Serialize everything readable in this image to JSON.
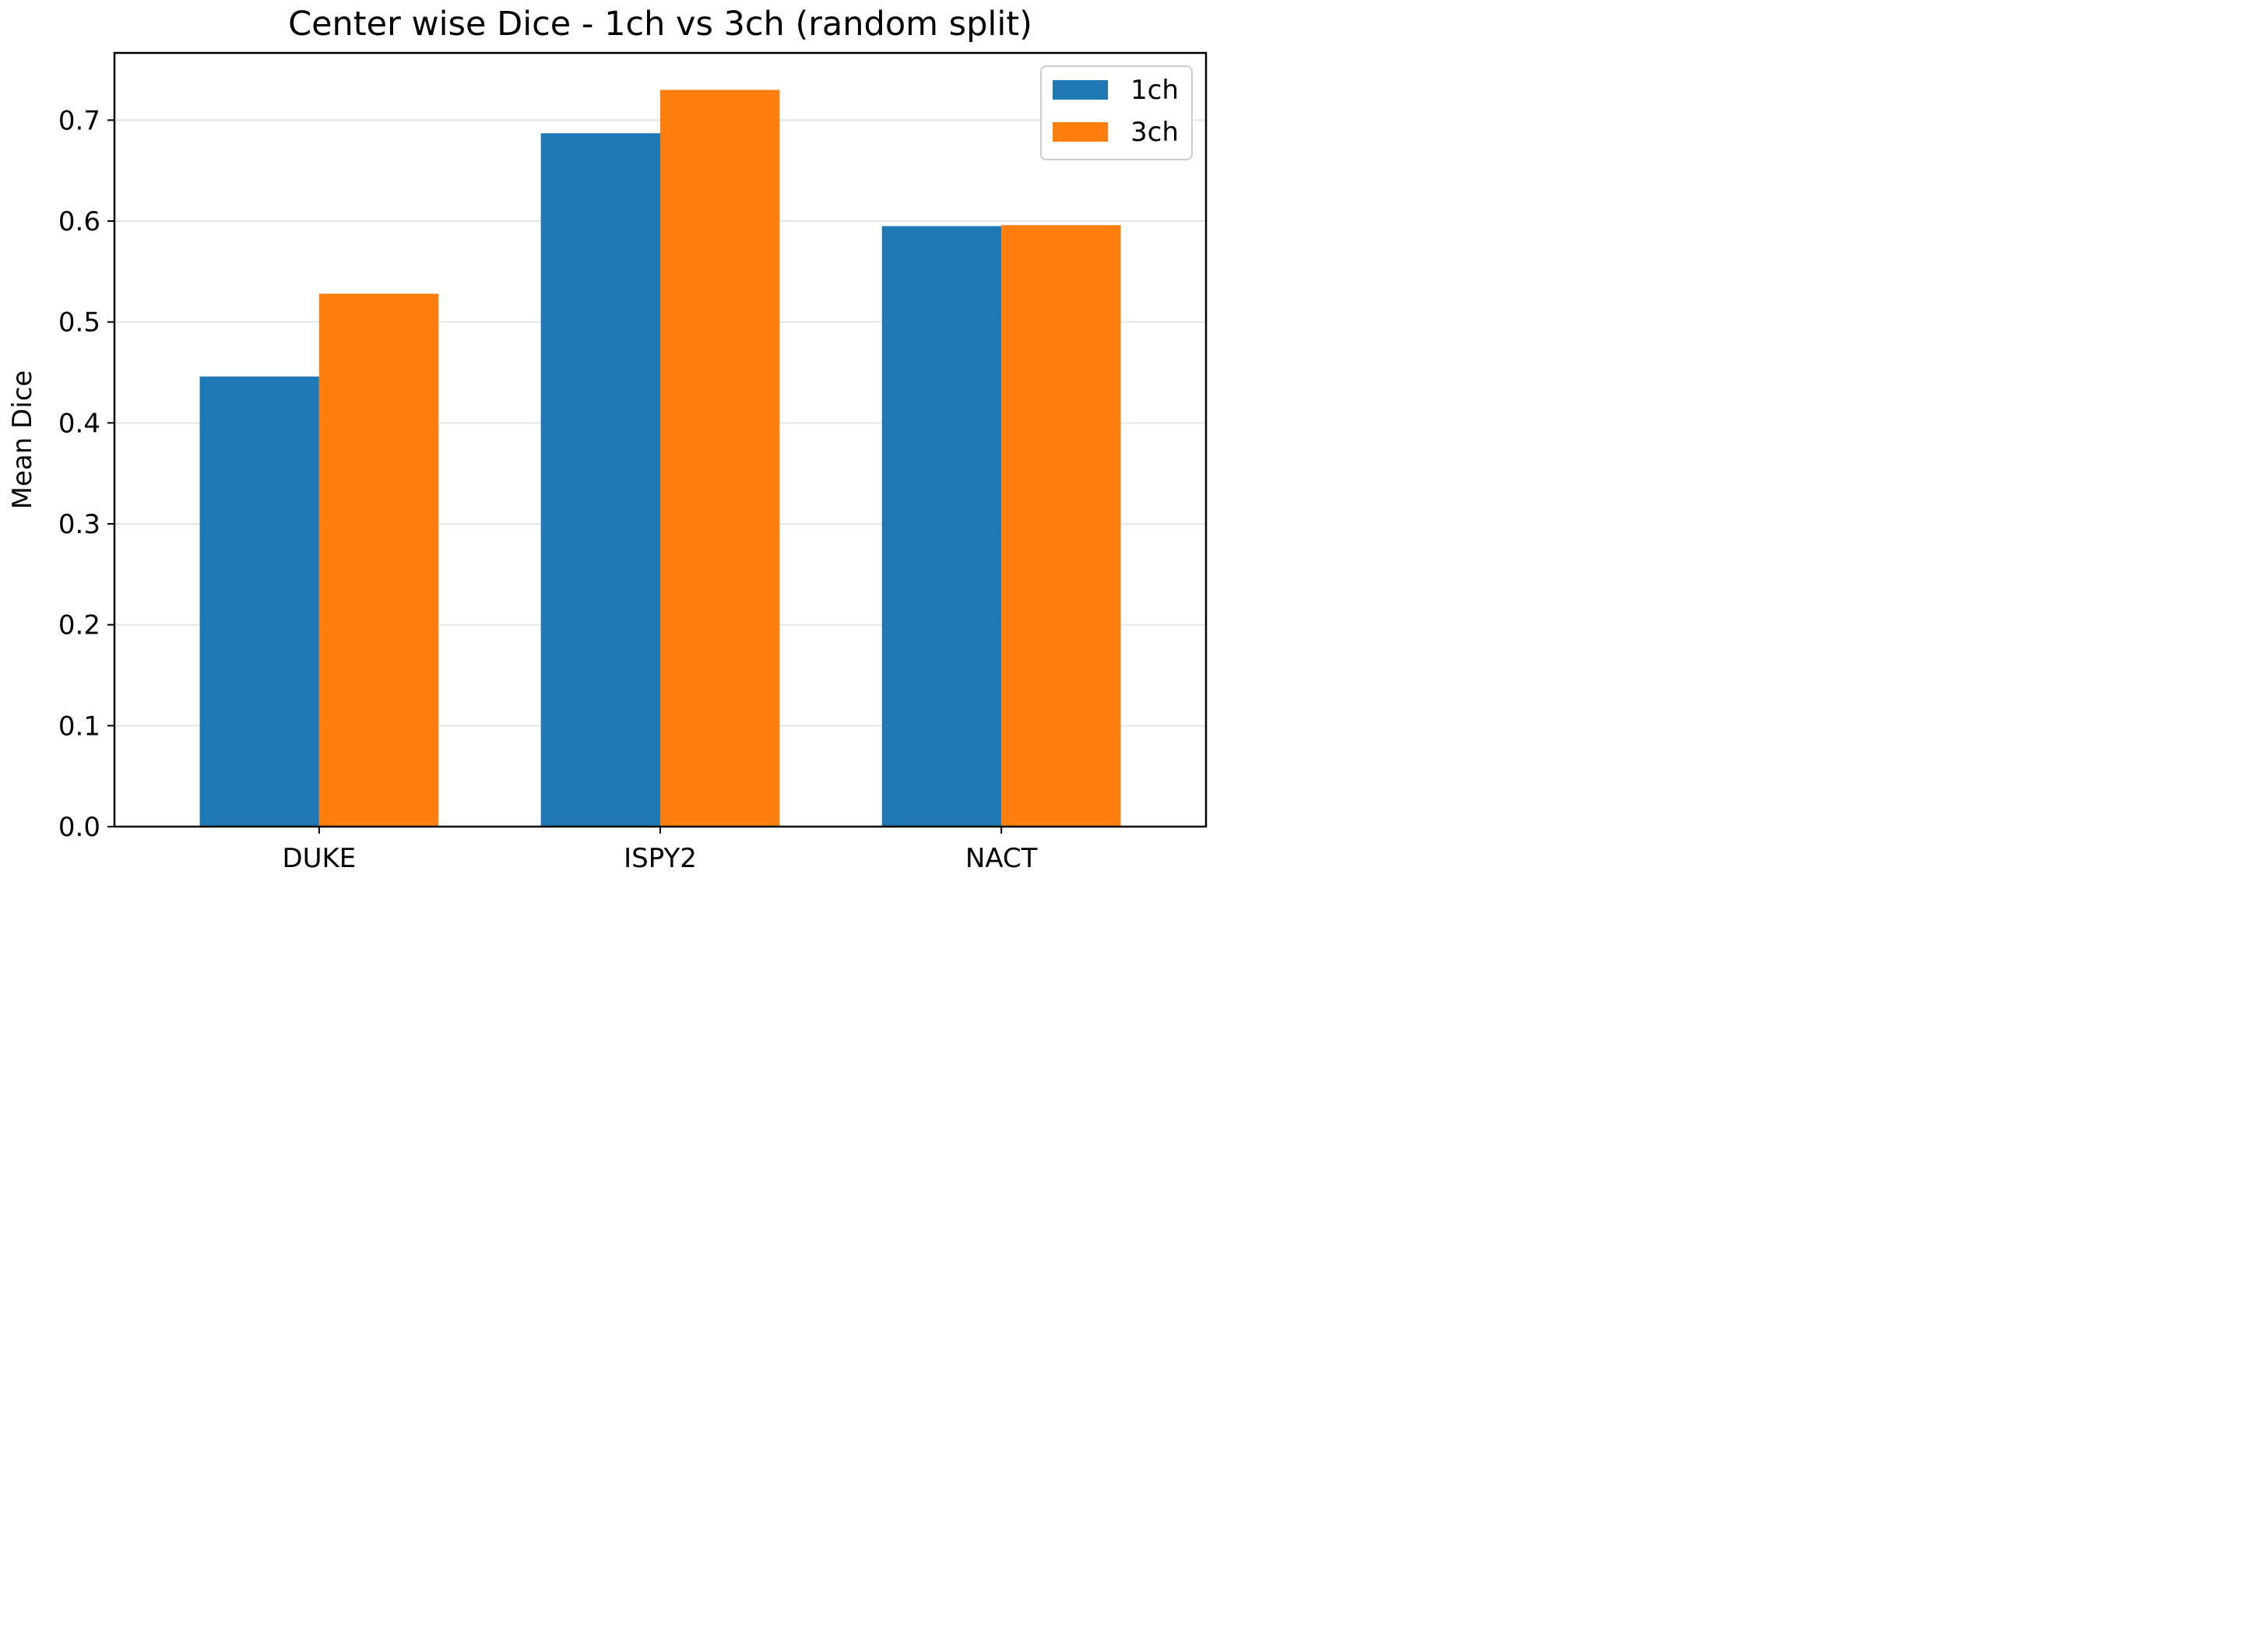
{
  "chart_data": {
    "type": "bar",
    "title": "Center wise Dice - 1ch vs 3ch (random split)",
    "xlabel": "",
    "ylabel": "Mean Dice",
    "categories": [
      "DUKE",
      "ISPY2",
      "NACT"
    ],
    "series": [
      {
        "name": "1ch",
        "color": "#1f77b4",
        "values": [
          0.446,
          0.687,
          0.595
        ]
      },
      {
        "name": "3ch",
        "color": "#ff7f0e",
        "values": [
          0.528,
          0.73,
          0.596
        ]
      }
    ],
    "ylim": [
      0.0,
      0.7666
    ],
    "yticks": [
      "0.0",
      "0.1",
      "0.2",
      "0.3",
      "0.4",
      "0.5",
      "0.6",
      "0.7"
    ],
    "grid": "horizontal",
    "legend_position": "top-right"
  }
}
